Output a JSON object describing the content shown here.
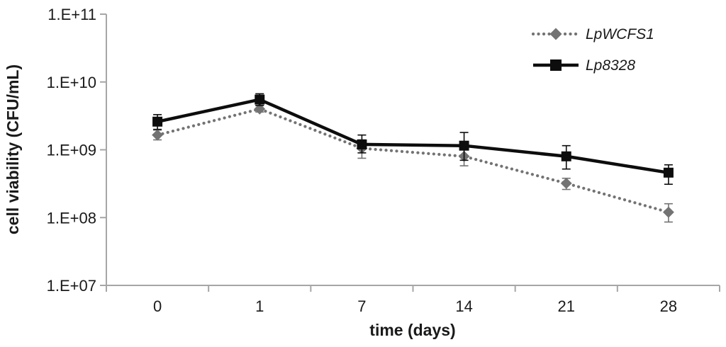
{
  "chart_data": {
    "type": "line",
    "title": "",
    "xlabel": "time (days)",
    "ylabel": "cell viability (CFU/mL)",
    "x_categories": [
      "0",
      "1",
      "7",
      "14",
      "21",
      "28"
    ],
    "y_axis": {
      "scale": "log10",
      "min": 10000000.0,
      "max": 100000000000.0,
      "tick_labels_top_down": [
        "1.E+11",
        "1.E+10",
        "1.E+09",
        "1.E+08",
        "1.E+07"
      ]
    },
    "grid": false,
    "legend_position": "top-right",
    "series": [
      {
        "name": "LpWCFS1",
        "marker": "diamond",
        "line_style": "dotted",
        "color": "#737373",
        "values": [
          1650000000.0,
          4000000000.0,
          1050000000.0,
          800000000.0,
          320000000.0,
          120000000.0
        ],
        "err_high": [
          1950000000.0,
          4500000000.0,
          1400000000.0,
          1100000000.0,
          380000000.0,
          160000000.0
        ],
        "err_low": [
          1400000000.0,
          3600000000.0,
          750000000.0,
          580000000.0,
          260000000.0,
          86000000.0
        ]
      },
      {
        "name": "Lp8328",
        "marker": "square",
        "line_style": "solid",
        "color": "#0d0d0d",
        "values": [
          2600000000.0,
          5500000000.0,
          1200000000.0,
          1150000000.0,
          800000000.0,
          460000000.0
        ],
        "err_high": [
          3300000000.0,
          6700000000.0,
          1650000000.0,
          1800000000.0,
          1150000000.0,
          600000000.0
        ],
        "err_low": [
          2000000000.0,
          4500000000.0,
          900000000.0,
          700000000.0,
          520000000.0,
          310000000.0
        ]
      }
    ],
    "colors": {
      "axis": "#a6a6a6",
      "text": "#1a1a1a"
    }
  }
}
